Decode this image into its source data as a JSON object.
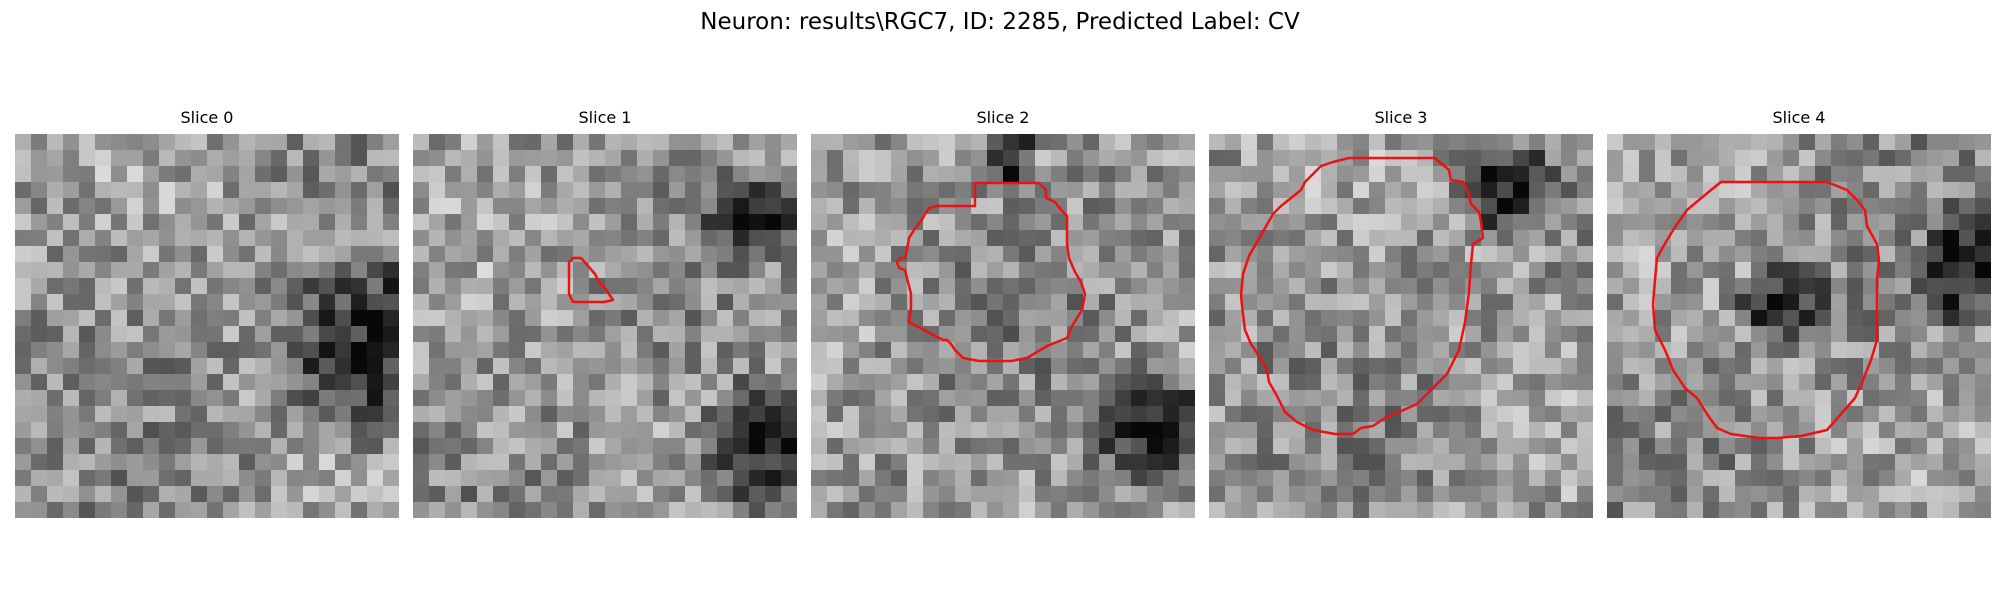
{
  "figure": {
    "title": "Neuron: results\\RGC7, ID: 2285, Predicted Label: CV"
  },
  "panels": [
    {
      "title": "Slice 0",
      "has_contour": false,
      "dark": [
        [
          0.95,
          0.57,
          0.34,
          0.29
        ]
      ]
    },
    {
      "title": "Slice 1",
      "has_contour": true,
      "dark": [
        [
          0.95,
          0.82,
          0.24,
          0.22
        ],
        [
          0.9,
          0.22,
          0.16,
          0.14
        ]
      ]
    },
    {
      "title": "Slice 2",
      "has_contour": true,
      "dark": [
        [
          0.88,
          0.75,
          0.2,
          0.18
        ],
        [
          0.52,
          0.05,
          0.08,
          0.12
        ]
      ]
    },
    {
      "title": "Slice 3",
      "has_contour": true,
      "dark": [
        [
          0.78,
          0.14,
          0.14,
          0.14
        ]
      ]
    },
    {
      "title": "Slice 4",
      "has_contour": true,
      "dark": [
        [
          0.92,
          0.35,
          0.12,
          0.2
        ],
        [
          0.46,
          0.44,
          0.14,
          0.12
        ]
      ]
    }
  ],
  "colors": {
    "contour": "#ee1111"
  }
}
